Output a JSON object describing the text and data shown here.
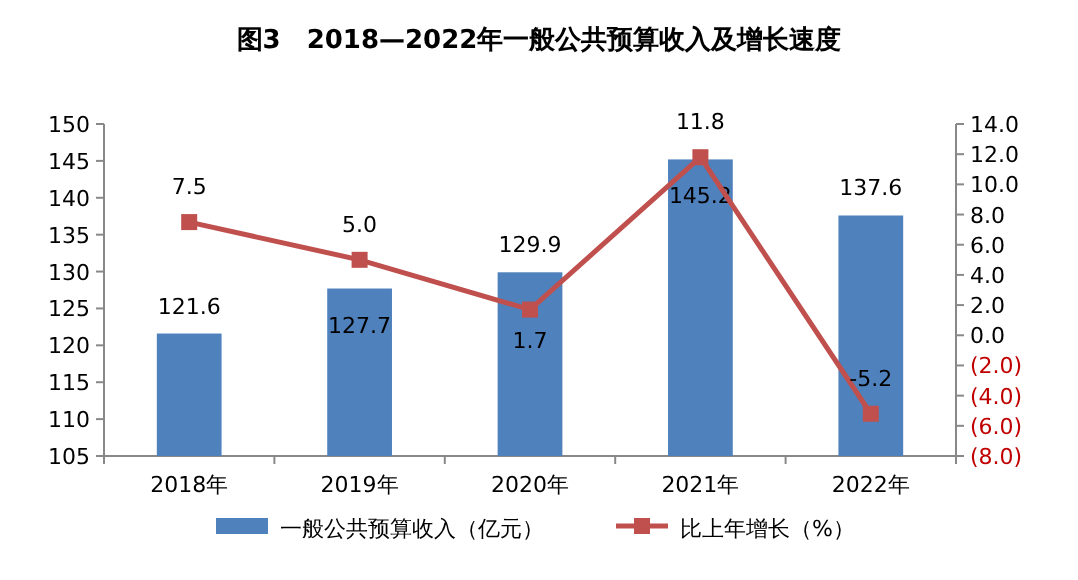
{
  "chart_data": {
    "type": "bar",
    "title": "图3　2018—2022年一般公共预算收入及增长速度",
    "categories": [
      "2018年",
      "2019年",
      "2020年",
      "2021年",
      "2022年"
    ],
    "series": [
      {
        "name": "一般公共预算收入（亿元）",
        "color": "#4f81bd",
        "values": [
          121.6,
          127.7,
          129.9,
          145.2,
          137.6
        ],
        "value_labels": [
          "121.6",
          "127.7",
          "129.9",
          "145.2",
          "137.6"
        ]
      },
      {
        "name": "比上年增长（%）",
        "type": "line",
        "axis": "y2",
        "color": "#c0504d",
        "marker": "square",
        "values": [
          7.5,
          5.0,
          1.7,
          11.8,
          -5.2
        ],
        "value_labels": [
          "7.5",
          "5.0",
          "1.7",
          "11.8",
          "-5.2"
        ]
      }
    ],
    "ylim": [
      105,
      150
    ],
    "yticks": [
      105,
      110,
      115,
      120,
      125,
      130,
      135,
      140,
      145,
      150
    ],
    "y2lim": [
      -8,
      14
    ],
    "y2ticks": [
      {
        "value": -8,
        "label": "(8.0)"
      },
      {
        "value": -6,
        "label": "(6.0)"
      },
      {
        "value": -4,
        "label": "(4.0)"
      },
      {
        "value": -2,
        "label": "(2.0)"
      },
      {
        "value": 0,
        "label": "0.0"
      },
      {
        "value": 2,
        "label": "2.0"
      },
      {
        "value": 4,
        "label": "4.0"
      },
      {
        "value": 6,
        "label": "6.0"
      },
      {
        "value": 8,
        "label": "8.0"
      },
      {
        "value": 10,
        "label": "10.0"
      },
      {
        "value": 12,
        "label": "12.0"
      },
      {
        "value": 14,
        "label": "14.0"
      }
    ],
    "legend": "bottom"
  }
}
